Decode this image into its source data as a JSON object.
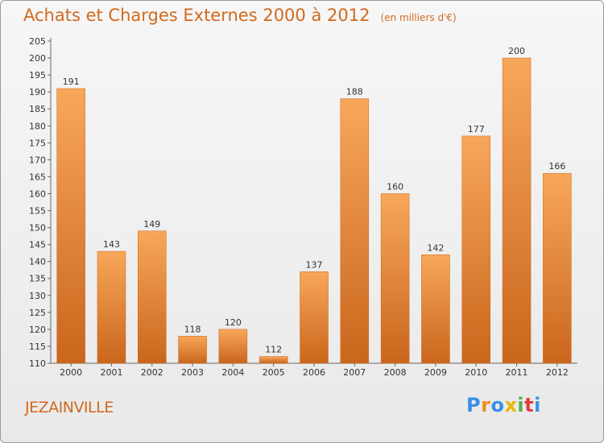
{
  "title": "Achats et Charges Externes 2000 à 2012",
  "unit": "(en milliers d'€)",
  "city": "JEZAINVILLE",
  "logo": {
    "letters": [
      "P",
      "r",
      "o",
      "x",
      "i",
      "t",
      "i"
    ],
    "colors": [
      "#3a8ee6",
      "#f08a24",
      "#3a8ee6",
      "#e6b800",
      "#56b048",
      "#e23c3c",
      "#3a8ee6"
    ]
  },
  "colors": {
    "accent": "#d2691e",
    "bar_light": "#f8a75a",
    "bar_dark": "#c9661c"
  },
  "chart_data": {
    "type": "bar",
    "categories": [
      "2000",
      "2001",
      "2002",
      "2003",
      "2004",
      "2005",
      "2006",
      "2007",
      "2008",
      "2009",
      "2010",
      "2011",
      "2012"
    ],
    "values": [
      191,
      143,
      149,
      118,
      120,
      112,
      137,
      188,
      160,
      142,
      177,
      200,
      166
    ],
    "ylim": [
      110,
      205
    ],
    "yticks": [
      110,
      115,
      120,
      125,
      130,
      135,
      140,
      145,
      150,
      155,
      160,
      165,
      170,
      175,
      180,
      185,
      190,
      195,
      200,
      205
    ],
    "grid": false,
    "data_labels": true
  }
}
